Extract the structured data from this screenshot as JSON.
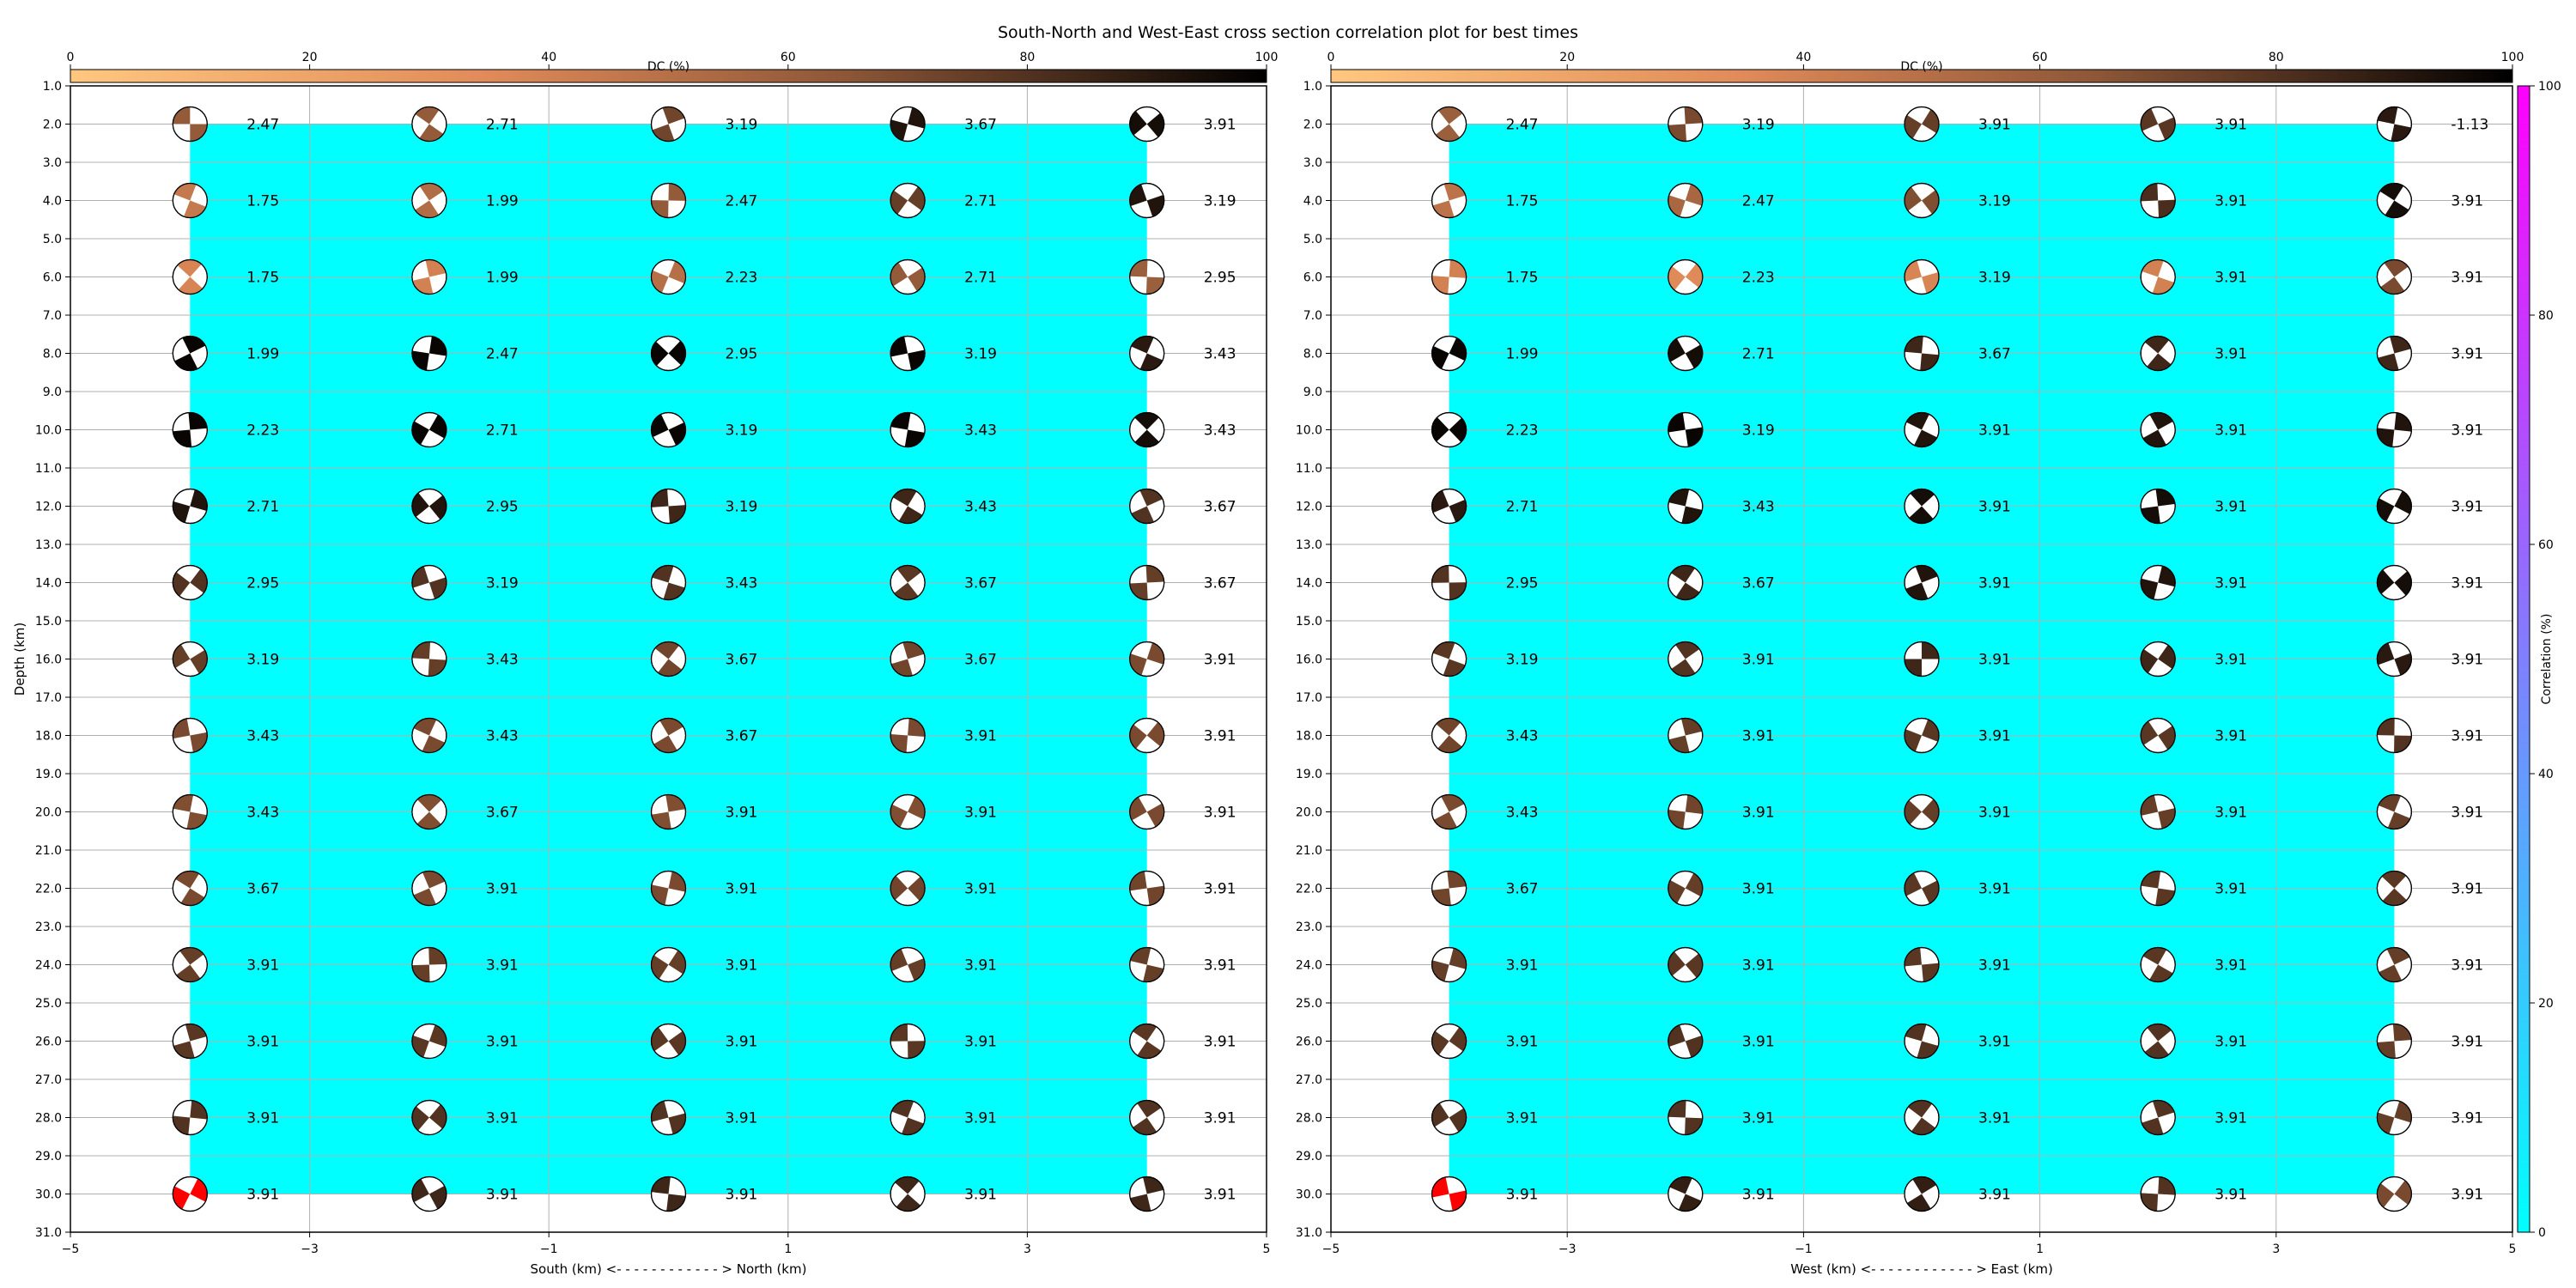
{
  "figure": {
    "title": "South-North and West-East cross section correlation plot for best times"
  },
  "chart_data": [
    {
      "type": "scatter",
      "panel": "south-north",
      "title": "",
      "xlabel": "South (km) <- - - - - - - - - - - - > North (km)",
      "ylabel": "Depth (km)",
      "xlim": [
        -5,
        5
      ],
      "ylim": [
        31,
        1
      ],
      "xticks": [
        "−5",
        "−3",
        "−1",
        "1",
        "3",
        "5"
      ],
      "yticks": [
        "1.0",
        "2.0",
        "3.0",
        "4.0",
        "5.0",
        "6.0",
        "7.0",
        "8.0",
        "9.0",
        "10.0",
        "11.0",
        "12.0",
        "13.0",
        "14.0",
        "15.0",
        "16.0",
        "17.0",
        "18.0",
        "19.0",
        "20.0",
        "21.0",
        "22.0",
        "23.0",
        "24.0",
        "25.0",
        "26.0",
        "27.0",
        "28.0",
        "29.0",
        "30.0",
        "31.0"
      ],
      "grid": true,
      "correlation_field": {
        "x_range": [
          -4,
          4
        ],
        "depth_range": [
          2,
          30
        ],
        "correlation_pct": 0,
        "color": "#00ffff"
      },
      "x_positions": [
        -4,
        -2,
        0,
        2,
        4
      ],
      "depths": [
        2,
        4,
        6,
        8,
        10,
        12,
        14,
        16,
        18,
        20,
        22,
        24,
        26,
        28,
        30
      ],
      "time_labels": [
        [
          "2.47",
          "2.71",
          "3.19",
          "3.67",
          "3.91"
        ],
        [
          "1.75",
          "1.99",
          "2.47",
          "2.71",
          "3.19"
        ],
        [
          "1.75",
          "1.99",
          "2.23",
          "2.71",
          "2.95"
        ],
        [
          "1.99",
          "2.47",
          "2.95",
          "3.19",
          "3.43"
        ],
        [
          "2.23",
          "2.71",
          "3.19",
          "3.43",
          "3.43"
        ],
        [
          "2.71",
          "2.95",
          "3.19",
          "3.43",
          "3.67"
        ],
        [
          "2.95",
          "3.19",
          "3.43",
          "3.67",
          "3.67"
        ],
        [
          "3.19",
          "3.43",
          "3.67",
          "3.67",
          "3.91"
        ],
        [
          "3.43",
          "3.43",
          "3.67",
          "3.91",
          "3.91"
        ],
        [
          "3.43",
          "3.67",
          "3.91",
          "3.91",
          "3.91"
        ],
        [
          "3.67",
          "3.91",
          "3.91",
          "3.91",
          "3.91"
        ],
        [
          "3.91",
          "3.91",
          "3.91",
          "3.91",
          "3.91"
        ],
        [
          "3.91",
          "3.91",
          "3.91",
          "3.91",
          "3.91"
        ],
        [
          "3.91",
          "3.91",
          "3.91",
          "3.91",
          "3.91"
        ],
        [
          "3.91",
          "3.91",
          "3.91",
          "3.91",
          "3.91"
        ]
      ],
      "dc_pct": [
        [
          62,
          62,
          72,
          92,
          95
        ],
        [
          45,
          52,
          62,
          75,
          92
        ],
        [
          38,
          40,
          50,
          62,
          60
        ],
        [
          98,
          98,
          98,
          98,
          90
        ],
        [
          98,
          98,
          98,
          98,
          95
        ],
        [
          92,
          92,
          85,
          85,
          80
        ],
        [
          80,
          80,
          80,
          78,
          75
        ],
        [
          75,
          75,
          72,
          72,
          70
        ],
        [
          70,
          70,
          70,
          70,
          70
        ],
        [
          68,
          68,
          68,
          68,
          70
        ],
        [
          70,
          70,
          70,
          72,
          72
        ],
        [
          75,
          75,
          75,
          75,
          75
        ],
        [
          78,
          78,
          78,
          78,
          78
        ],
        [
          80,
          80,
          80,
          80,
          80
        ],
        [
          -1,
          85,
          85,
          85,
          85
        ]
      ],
      "highlight": {
        "x": -4,
        "depth": 30,
        "color": "#ff0000"
      }
    },
    {
      "type": "scatter",
      "panel": "west-east",
      "title": "",
      "xlabel": "West (km) <- - - - - - - - - - - - > East (km)",
      "ylabel": "",
      "xlim": [
        -5,
        5
      ],
      "ylim": [
        31,
        1
      ],
      "xticks": [
        "−5",
        "−3",
        "−1",
        "1",
        "3",
        "5"
      ],
      "yticks": [
        "1.0",
        "2.0",
        "3.0",
        "4.0",
        "5.0",
        "6.0",
        "7.0",
        "8.0",
        "9.0",
        "10.0",
        "11.0",
        "12.0",
        "13.0",
        "14.0",
        "15.0",
        "16.0",
        "17.0",
        "18.0",
        "19.0",
        "20.0",
        "21.0",
        "22.0",
        "23.0",
        "24.0",
        "25.0",
        "26.0",
        "27.0",
        "28.0",
        "29.0",
        "30.0",
        "31.0"
      ],
      "grid": true,
      "correlation_field": {
        "x_range": [
          -4,
          4
        ],
        "depth_range": [
          2,
          30
        ],
        "correlation_pct": 0,
        "color": "#00ffff"
      },
      "x_positions": [
        -4,
        -2,
        0,
        2,
        4
      ],
      "depths": [
        2,
        4,
        6,
        8,
        10,
        12,
        14,
        16,
        18,
        20,
        22,
        24,
        26,
        28,
        30
      ],
      "time_labels": [
        [
          "2.47",
          "3.19",
          "3.91",
          "3.91",
          "-1.13"
        ],
        [
          "1.75",
          "2.47",
          "3.19",
          "3.91",
          "3.91"
        ],
        [
          "1.75",
          "2.23",
          "3.19",
          "3.91",
          "3.91"
        ],
        [
          "1.99",
          "2.71",
          "3.67",
          "3.91",
          "3.91"
        ],
        [
          "2.23",
          "3.19",
          "3.91",
          "3.91",
          "3.91"
        ],
        [
          "2.71",
          "3.43",
          "3.91",
          "3.91",
          "3.91"
        ],
        [
          "2.95",
          "3.67",
          "3.91",
          "3.91",
          "3.91"
        ],
        [
          "3.19",
          "3.91",
          "3.91",
          "3.91",
          "3.91"
        ],
        [
          "3.43",
          "3.91",
          "3.91",
          "3.91",
          "3.91"
        ],
        [
          "3.43",
          "3.91",
          "3.91",
          "3.91",
          "3.91"
        ],
        [
          "3.67",
          "3.91",
          "3.91",
          "3.91",
          "3.91"
        ],
        [
          "3.91",
          "3.91",
          "3.91",
          "3.91",
          "3.91"
        ],
        [
          "3.91",
          "3.91",
          "3.91",
          "3.91",
          "3.91"
        ],
        [
          "3.91",
          "3.91",
          "3.91",
          "3.91",
          "3.91"
        ],
        [
          "3.91",
          "3.91",
          "3.91",
          "3.91",
          "3.91"
        ]
      ],
      "dc_pct": [
        [
          60,
          70,
          75,
          78,
          90
        ],
        [
          48,
          55,
          68,
          82,
          95
        ],
        [
          40,
          35,
          38,
          40,
          70
        ],
        [
          98,
          95,
          85,
          85,
          85
        ],
        [
          98,
          98,
          92,
          92,
          92
        ],
        [
          90,
          92,
          95,
          95,
          95
        ],
        [
          80,
          85,
          92,
          92,
          95
        ],
        [
          78,
          80,
          85,
          85,
          90
        ],
        [
          72,
          75,
          78,
          78,
          80
        ],
        [
          70,
          72,
          75,
          75,
          75
        ],
        [
          72,
          75,
          78,
          78,
          78
        ],
        [
          75,
          78,
          78,
          78,
          75
        ],
        [
          78,
          80,
          80,
          80,
          75
        ],
        [
          80,
          80,
          80,
          80,
          75
        ],
        [
          -1,
          88,
          88,
          80,
          70
        ]
      ],
      "highlight": {
        "x": -4,
        "depth": 30,
        "color": "#ff0000"
      }
    }
  ],
  "colorbars": {
    "dc": {
      "label": "DC (%)",
      "ticks": [
        "0",
        "20",
        "40",
        "60",
        "80",
        "100"
      ],
      "range": [
        0,
        100
      ],
      "orientation": "horizontal",
      "colormap": "copper_r"
    },
    "correlation": {
      "label": "Correlation (%)",
      "ticks": [
        "0",
        "20",
        "40",
        "60",
        "80",
        "100"
      ],
      "range": [
        0,
        100
      ],
      "orientation": "vertical",
      "colormap": "cool"
    }
  }
}
